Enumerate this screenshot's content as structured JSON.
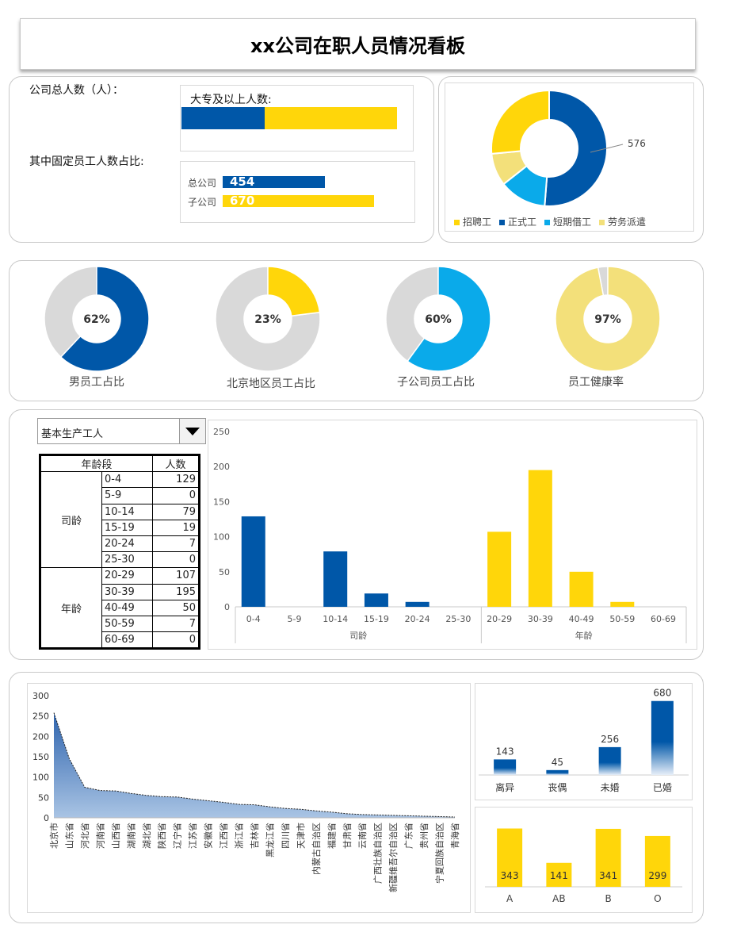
{
  "title": "xx公司在职人员情况看板",
  "summary": {
    "total_label": "公司总人数（人）：",
    "fixed_label": "其中固定员工人数占比:",
    "edu_label": "大专及以上人数:",
    "edu_values": [
      0.38,
      0.62
    ],
    "branch": [
      {
        "label": "总公司",
        "value": "454"
      },
      {
        "label": "子公司",
        "value": "670"
      }
    ]
  },
  "employment_donut": {
    "callout": "576",
    "legend": [
      "招聘工",
      "正式工",
      "短期借工",
      "劳务派遣"
    ],
    "colors": [
      "#FFD60A",
      "#0057A8",
      "#0AAAEA",
      "#F3E07A"
    ],
    "slices": [
      {
        "name": "正式工",
        "value": 576
      },
      {
        "name": "短期借工",
        "value": 148
      },
      {
        "name": "劳务派遣",
        "value": 102
      },
      {
        "name": "招聘工",
        "value": 298
      }
    ]
  },
  "ratios": [
    {
      "label": "男员工占比",
      "pct": "62%",
      "value": 62,
      "color": "#0057A8"
    },
    {
      "label": "北京地区员工占比",
      "pct": "23%",
      "value": 23,
      "color": "#FFD60A"
    },
    {
      "label": "子公司员工占比",
      "pct": "60%",
      "value": 60,
      "color": "#0AAAEA"
    },
    {
      "label": "员工健康率",
      "pct": "97%",
      "value": 97,
      "color": "#F3E07A"
    }
  ],
  "age_section": {
    "dropdown_value": "基本生产工人",
    "header_group": "年龄段",
    "header_count": "人数",
    "groups": [
      {
        "name": "司龄",
        "rows": [
          [
            "0-4",
            "129"
          ],
          [
            "5-9",
            "0"
          ],
          [
            "10-14",
            "79"
          ],
          [
            "15-19",
            "19"
          ],
          [
            "20-24",
            "7"
          ],
          [
            "25-30",
            "0"
          ]
        ]
      },
      {
        "name": "年龄",
        "rows": [
          [
            "20-29",
            "107"
          ],
          [
            "30-39",
            "195"
          ],
          [
            "40-49",
            "50"
          ],
          [
            "50-59",
            "7"
          ],
          [
            "60-69",
            "0"
          ]
        ]
      }
    ]
  },
  "chart_data": [
    {
      "type": "bar",
      "title": "",
      "categories": [
        "0-4",
        "5-9",
        "10-14",
        "15-19",
        "20-24",
        "25-30",
        "20-29",
        "30-39",
        "40-49",
        "50-59",
        "60-69"
      ],
      "groups": [
        {
          "name": "司龄",
          "count": 6
        },
        {
          "name": "年龄",
          "count": 5
        }
      ],
      "values": [
        129,
        0,
        79,
        19,
        7,
        0,
        107,
        195,
        50,
        7,
        0
      ],
      "colors": [
        "#0057A8",
        "#FFD60A"
      ],
      "ylim": [
        0,
        250
      ],
      "yticks": [
        0,
        50,
        100,
        150,
        200,
        250
      ]
    },
    {
      "type": "area",
      "title": "",
      "categories": [
        "北京市",
        "山东省",
        "河北省",
        "河南省",
        "山西省",
        "湖南省",
        "湖北省",
        "陕西省",
        "辽宁省",
        "江苏省",
        "安徽省",
        "江西省",
        "浙江省",
        "吉林省",
        "黑龙江省",
        "四川省",
        "天津市",
        "内蒙古自治区",
        "福建省",
        "甘肃省",
        "云南省",
        "广西壮族自治区",
        "新疆维吾尔自治区",
        "广东省",
        "贵州省",
        "宁夏回族自治区",
        "青海省"
      ],
      "values": [
        258,
        145,
        75,
        67,
        66,
        60,
        55,
        52,
        51,
        46,
        42,
        38,
        33,
        32,
        27,
        23,
        21,
        17,
        14,
        10,
        8,
        7,
        6,
        5,
        4,
        3,
        2
      ],
      "ylim": [
        0,
        300
      ],
      "yticks": [
        0,
        50,
        100,
        150,
        200,
        250,
        300
      ]
    },
    {
      "type": "bar",
      "title": "",
      "categories": [
        "离异",
        "丧偶",
        "未婚",
        "已婚"
      ],
      "values": [
        143,
        45,
        256,
        680
      ],
      "labels": [
        "143",
        "45",
        "256",
        "680"
      ],
      "ylim": [
        0,
        700
      ]
    },
    {
      "type": "bar",
      "title": "",
      "categories": [
        "A",
        "AB",
        "B",
        "O"
      ],
      "values": [
        343,
        141,
        341,
        299
      ],
      "labels": [
        "343",
        "141",
        "341",
        "299"
      ],
      "ylim": [
        0,
        350
      ]
    }
  ]
}
